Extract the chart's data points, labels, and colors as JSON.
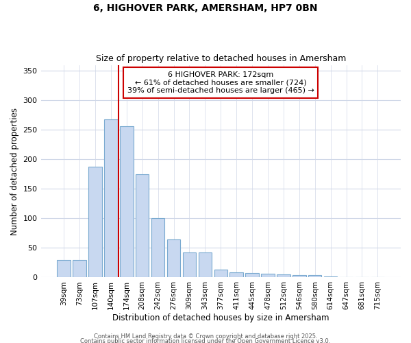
{
  "title1": "6, HIGHOVER PARK, AMERSHAM, HP7 0BN",
  "title2": "Size of property relative to detached houses in Amersham",
  "xlabel": "Distribution of detached houses by size in Amersham",
  "ylabel": "Number of detached properties",
  "categories": [
    "39sqm",
    "73sqm",
    "107sqm",
    "140sqm",
    "174sqm",
    "208sqm",
    "242sqm",
    "276sqm",
    "309sqm",
    "343sqm",
    "377sqm",
    "411sqm",
    "445sqm",
    "478sqm",
    "512sqm",
    "546sqm",
    "580sqm",
    "614sqm",
    "647sqm",
    "681sqm",
    "715sqm"
  ],
  "values": [
    30,
    30,
    188,
    268,
    256,
    175,
    100,
    65,
    42,
    42,
    13,
    9,
    7,
    6,
    5,
    4,
    4,
    2,
    1,
    1,
    1
  ],
  "bar_color": "#c8d8f0",
  "bar_edgecolor": "#7aaad0",
  "red_line_index": 4,
  "annotation_text": "6 HIGHOVER PARK: 172sqm\n← 61% of detached houses are smaller (724)\n39% of semi-detached houses are larger (465) →",
  "annotation_box_color": "#ffffff",
  "annotation_box_edgecolor": "#cc0000",
  "ylim": [
    0,
    360
  ],
  "yticks": [
    0,
    50,
    100,
    150,
    200,
    250,
    300,
    350
  ],
  "fig_bg": "#ffffff",
  "plot_bg": "#ffffff",
  "grid_color": "#d0d8e8",
  "footer1": "Contains HM Land Registry data © Crown copyright and database right 2025.",
  "footer2": "Contains public sector information licensed under the Open Government Licence v3.0."
}
